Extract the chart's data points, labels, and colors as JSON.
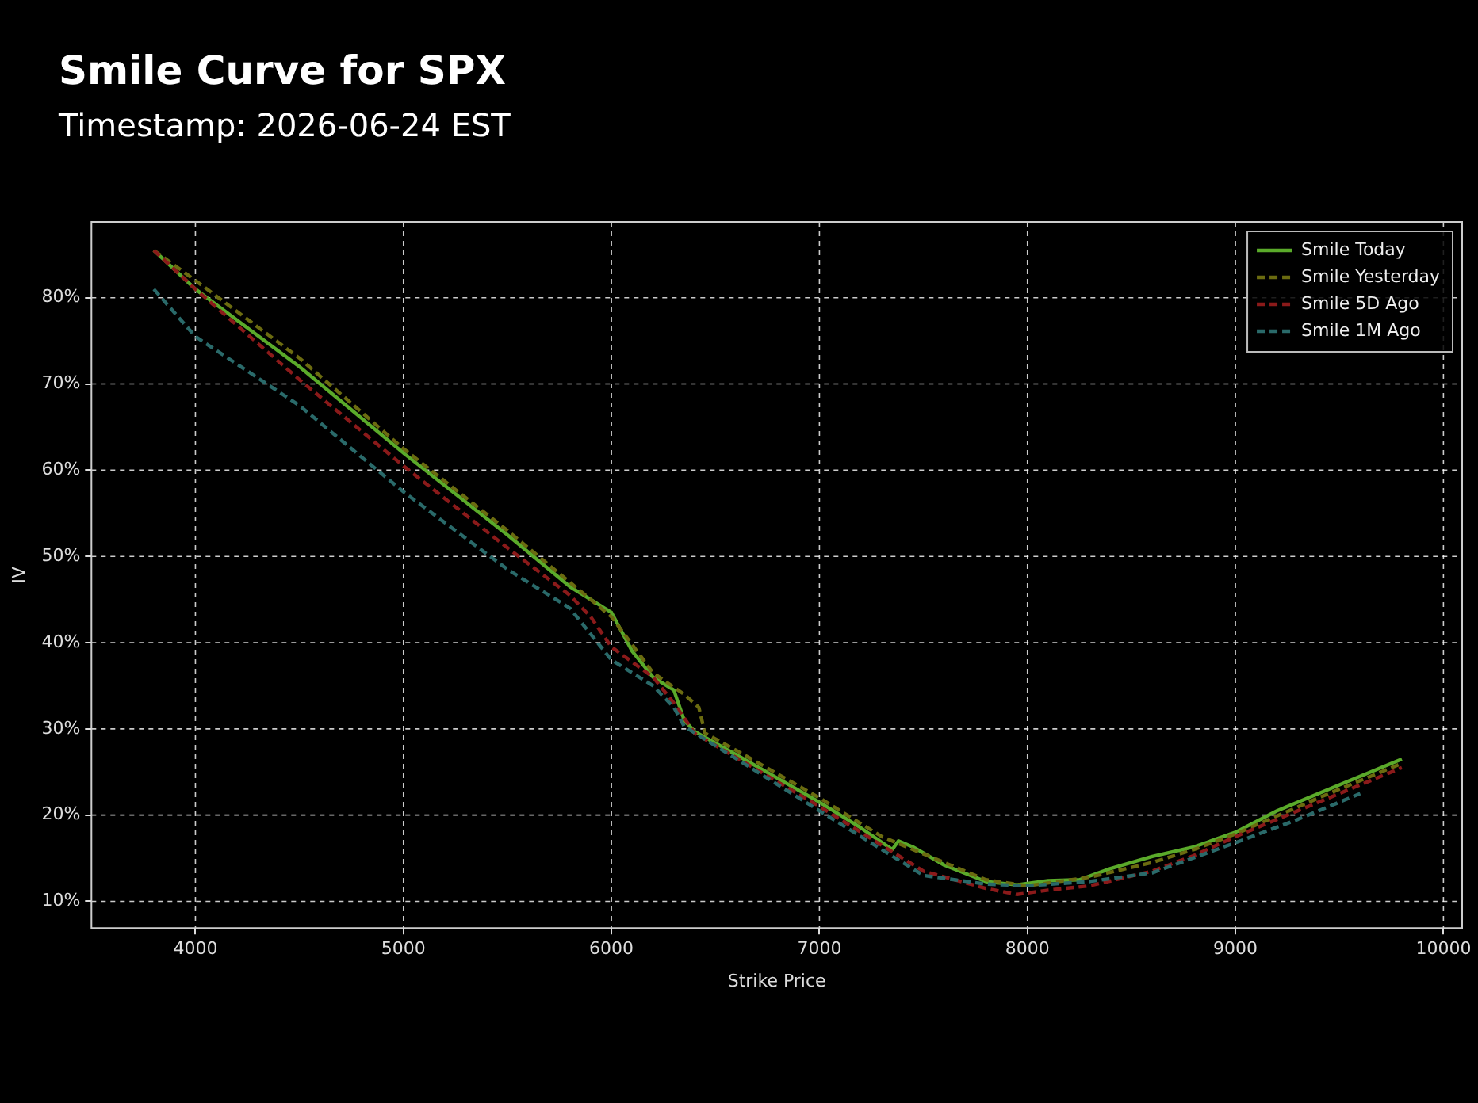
{
  "chart_data": {
    "type": "line",
    "title": "Smile Curve for SPX",
    "subtitle": "Timestamp: 2026-06-24 EST",
    "xlabel": "Strike Price",
    "ylabel": "IV",
    "xlim": [
      3500,
      10090
    ],
    "xticks": [
      4000,
      5000,
      6000,
      7000,
      8000,
      9000,
      10000
    ],
    "ylim": [
      6.9,
      88.8
    ],
    "yticks": [
      {
        "value": 10,
        "label": "10%"
      },
      {
        "value": 20,
        "label": "20%"
      },
      {
        "value": 30,
        "label": "30%"
      },
      {
        "value": 40,
        "label": "40%"
      },
      {
        "value": 50,
        "label": "50%"
      },
      {
        "value": 60,
        "label": "60%"
      },
      {
        "value": 70,
        "label": "70%"
      },
      {
        "value": 80,
        "label": "80%"
      }
    ],
    "grid": true,
    "legend": "top right",
    "marker": "none",
    "series": [
      {
        "name": "Smile Today",
        "color": "#5aaa2a",
        "line_style": "solid",
        "x": [
          3800,
          4000,
          4500,
          5000,
          5500,
          5800,
          6000,
          6100,
          6200,
          6300,
          6350,
          6400,
          6600,
          7000,
          7200,
          7350,
          7380,
          7450,
          7600,
          7800,
          7950,
          8100,
          8250,
          8400,
          8600,
          8800,
          9000,
          9200,
          9500,
          9800
        ],
        "values": [
          85.5,
          81,
          72,
          62,
          52.5,
          46.5,
          43.5,
          39,
          36,
          34.5,
          31,
          29.7,
          27,
          21.5,
          18.5,
          16,
          17,
          16.3,
          14.2,
          12.3,
          11.9,
          12.4,
          12.5,
          13.8,
          15.2,
          16.3,
          18,
          20.5,
          23.5,
          26.5
        ]
      },
      {
        "name": "Smile Yesterday",
        "color": "#6b6b10",
        "line_style": "dashed",
        "x": [
          3800,
          4000,
          4500,
          5000,
          5500,
          5800,
          6000,
          6200,
          6350,
          6420,
          6450,
          6600,
          7000,
          7300,
          7500,
          7800,
          8000,
          8300,
          8600,
          8800,
          9000,
          9400,
          9800
        ],
        "values": [
          85.5,
          82,
          73,
          62.5,
          53,
          47,
          43,
          36.5,
          34,
          32.5,
          29.5,
          27.5,
          22,
          17.5,
          15.5,
          12.5,
          11.8,
          12.8,
          14.5,
          16,
          17.8,
          22,
          26
        ]
      },
      {
        "name": "Smile 5D Ago",
        "color": "#8b1a1a",
        "line_style": "dashed",
        "x": [
          3800,
          4000,
          4500,
          5000,
          5500,
          5800,
          5900,
          6000,
          6200,
          6300,
          6400,
          7000,
          7300,
          7500,
          7800,
          7950,
          8100,
          8300,
          8600,
          8800,
          9000,
          9400,
          9800
        ],
        "values": [
          85.5,
          81,
          70.5,
          60.5,
          51,
          45.5,
          43,
          39.5,
          36,
          33,
          29.5,
          21,
          16.5,
          13.5,
          11.5,
          10.8,
          11.3,
          11.8,
          13.5,
          15.3,
          17.5,
          21.5,
          25.5
        ]
      },
      {
        "name": "Smile 1M Ago",
        "color": "#2a6a6a",
        "line_style": "dashed",
        "x": [
          3800,
          4000,
          4500,
          5000,
          5500,
          5800,
          6000,
          6200,
          6300,
          6350,
          7000,
          7300,
          7500,
          7800,
          8000,
          8300,
          8600,
          9000,
          9300,
          9600
        ],
        "values": [
          81,
          75.5,
          67.5,
          57.5,
          48.5,
          44,
          38,
          35,
          32.5,
          30.3,
          20.5,
          16,
          13,
          12,
          11.8,
          12.3,
          13.3,
          16.8,
          19.5,
          22.5
        ]
      }
    ]
  }
}
